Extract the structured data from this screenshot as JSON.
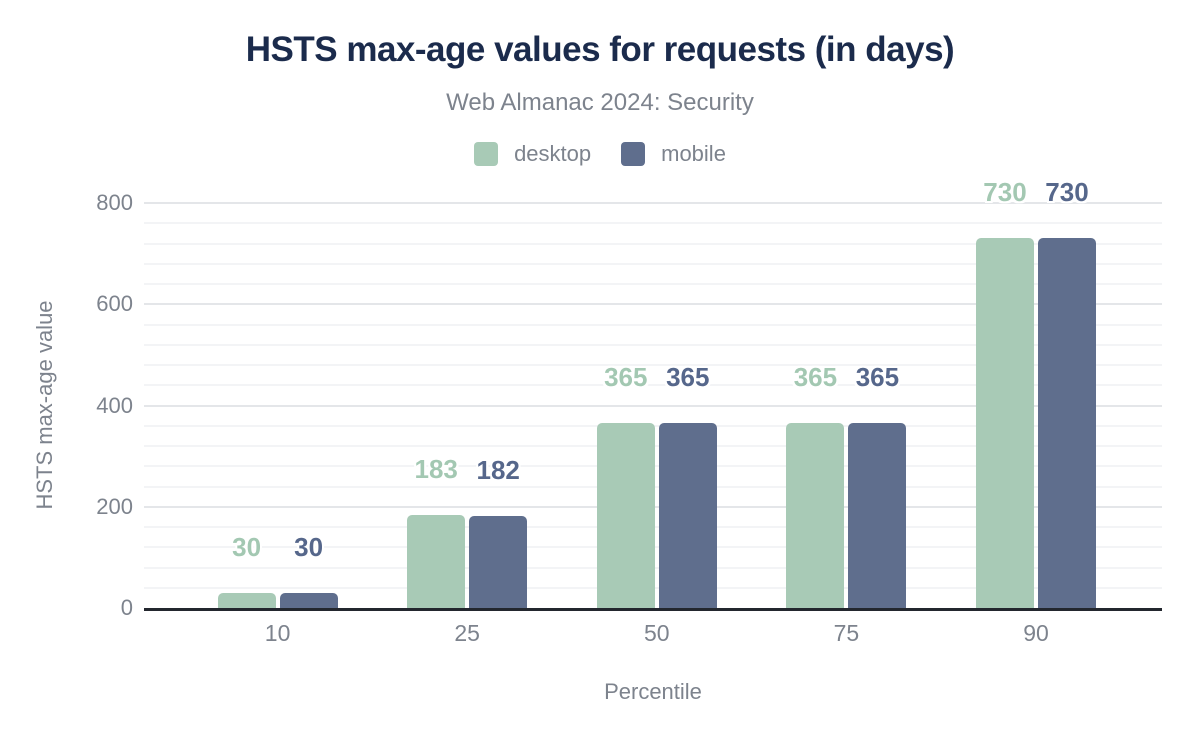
{
  "chart_data": {
    "type": "bar",
    "title": "HSTS max-age values for requests (in days)",
    "subtitle": "Web Almanac 2024: Security",
    "xlabel": "Percentile",
    "ylabel": "HSTS max-age value",
    "categories": [
      "10",
      "25",
      "50",
      "75",
      "90"
    ],
    "series": [
      {
        "name": "desktop",
        "color": "#a8cab6",
        "label_color": "#a3c8b2",
        "values": [
          30,
          183,
          365,
          365,
          730
        ]
      },
      {
        "name": "mobile",
        "color": "#5f6e8d",
        "label_color": "#56678b",
        "values": [
          30,
          182,
          365,
          365,
          730
        ]
      }
    ],
    "ylim": [
      0,
      800
    ],
    "yticks": [
      0,
      200,
      400,
      600,
      800
    ],
    "minor_gridline_step": 40,
    "grid": true,
    "legend_position": "top",
    "bar_value_labels": true
  },
  "colors": {
    "background": "#ffffff",
    "title": "#1b2b4c",
    "muted_text": "#7d838d",
    "major_gridline": "#e4e6e9",
    "minor_gridline": "#f3f4f6",
    "axis_baseline": "#23272e"
  }
}
